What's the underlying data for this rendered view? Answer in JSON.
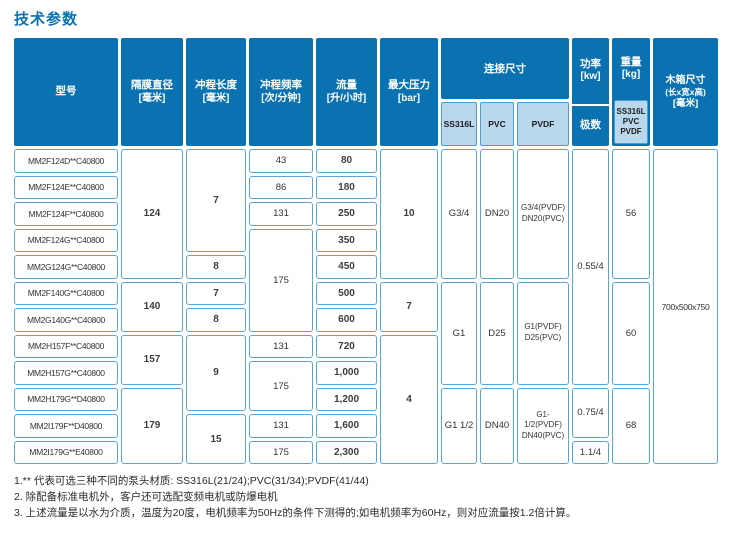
{
  "title": "技术参数",
  "colors": {
    "header_blue": "#0b72b2",
    "subheader_light_blue": "#b9d8ec",
    "cell_border_blue": "#5aa5d6",
    "title_blue": "#0b72b2"
  },
  "table": {
    "headers": {
      "model": "型号",
      "diaphragm": {
        "label": "隔膜直径",
        "unit": "[毫米]"
      },
      "stroke": {
        "label": "冲程长度",
        "unit": "[毫米]"
      },
      "frequency": {
        "label": "冲程频率",
        "unit": "[次/分钟]"
      },
      "flow": {
        "label": "流量",
        "unit": "[升/小时]"
      },
      "pressure": {
        "label": "最大压力",
        "unit": "[bar]"
      },
      "connection": {
        "label": "连接尺寸",
        "subs": [
          "SS316L",
          "PVC",
          "PVDF"
        ]
      },
      "power": {
        "label": "功率",
        "unit": "[kw]",
        "sub": "极数"
      },
      "weight": {
        "label": "重量",
        "unit": "[kg]",
        "subs": [
          "SS316L",
          "PVC",
          "PVDF"
        ]
      },
      "box": {
        "lines": [
          "木箱尺寸",
          "(长x宽x高)",
          "[毫米]"
        ]
      }
    },
    "column_order": [
      "model",
      "diaphragm",
      "stroke",
      "frequency",
      "flow",
      "pressure",
      "ss316l",
      "pvc",
      "pvdf",
      "power",
      "weight",
      "box"
    ],
    "models": [
      "MM2F124D**C40800",
      "MM2F124E**C40800",
      "MM2F124F**C40800",
      "MM2F124G**C40800",
      "MM2G124G**C40800",
      "MM2F140G**C40800",
      "MM2G140G**C40800",
      "MM2H157F**C40800",
      "MM2H157G**C40800",
      "MM2H179G**D40800",
      "MM2I179F**D40800",
      "MM2I179G**E40800"
    ],
    "cells": {
      "diaphragm": [
        {
          "value": "124",
          "row": 1,
          "span": 5
        },
        {
          "value": "140",
          "row": 6,
          "span": 2
        },
        {
          "value": "157",
          "row": 8,
          "span": 2
        },
        {
          "value": "179",
          "row": 10,
          "span": 3
        }
      ],
      "stroke": [
        {
          "value": "7",
          "row": 1,
          "span": 4
        },
        {
          "value": "8",
          "row": 5,
          "span": 1
        },
        {
          "value": "7",
          "row": 6,
          "span": 1
        },
        {
          "value": "8",
          "row": 7,
          "span": 1
        },
        {
          "value": "9",
          "row": 8,
          "span": 3
        },
        {
          "value": "15",
          "row": 11,
          "span": 2
        }
      ],
      "frequency": [
        {
          "value": "43",
          "row": 1,
          "span": 1
        },
        {
          "value": "86",
          "row": 2,
          "span": 1
        },
        {
          "value": "131",
          "row": 3,
          "span": 1
        },
        {
          "value": "175",
          "row": 4,
          "span": 4
        },
        {
          "value": "131",
          "row": 8,
          "span": 1
        },
        {
          "value": "175",
          "row": 9,
          "span": 2
        },
        {
          "value": "131",
          "row": 11,
          "span": 1
        },
        {
          "value": "175",
          "row": 12,
          "span": 1
        }
      ],
      "flow": [
        {
          "value": "80",
          "row": 1,
          "span": 1
        },
        {
          "value": "180",
          "row": 2,
          "span": 1
        },
        {
          "value": "250",
          "row": 3,
          "span": 1
        },
        {
          "value": "350",
          "row": 4,
          "span": 1
        },
        {
          "value": "450",
          "row": 5,
          "span": 1
        },
        {
          "value": "500",
          "row": 6,
          "span": 1
        },
        {
          "value": "600",
          "row": 7,
          "span": 1
        },
        {
          "value": "720",
          "row": 8,
          "span": 1
        },
        {
          "value": "1,000",
          "row": 9,
          "span": 1
        },
        {
          "value": "1,200",
          "row": 10,
          "span": 1
        },
        {
          "value": "1,600",
          "row": 11,
          "span": 1
        },
        {
          "value": "2,300",
          "row": 12,
          "span": 1
        }
      ],
      "pressure": [
        {
          "value": "10",
          "row": 1,
          "span": 5
        },
        {
          "value": "7",
          "row": 6,
          "span": 2
        },
        {
          "value": "4",
          "row": 8,
          "span": 5
        }
      ],
      "ss316l": [
        {
          "value": "G3/4",
          "row": 1,
          "span": 5
        },
        {
          "value": "G1",
          "row": 6,
          "span": 4
        },
        {
          "value": "G1 1/2",
          "row": 10,
          "span": 3
        }
      ],
      "pvc": [
        {
          "value": "DN20",
          "row": 1,
          "span": 5
        },
        {
          "value": "D25",
          "row": 6,
          "span": 4
        },
        {
          "value": "DN40",
          "row": 10,
          "span": 3
        }
      ],
      "pvdf": [
        {
          "value": "G3/4(PVDF)\nDN20(PVC)",
          "row": 1,
          "span": 5
        },
        {
          "value": "G1(PVDF)\nD25(PVC)",
          "row": 6,
          "span": 4
        },
        {
          "value": "G1-1/2(PVDF)\nDN40(PVC)",
          "row": 10,
          "span": 3
        }
      ],
      "power": [
        {
          "value": "0.55/4",
          "row": 1,
          "span": 9
        },
        {
          "value": "0.75/4",
          "row": 10,
          "span": 2
        },
        {
          "value": "1.1/4",
          "row": 12,
          "span": 1
        }
      ],
      "weight": [
        {
          "value": "56",
          "row": 1,
          "span": 5
        },
        {
          "value": "60",
          "row": 6,
          "span": 4
        },
        {
          "value": "68",
          "row": 10,
          "span": 3
        }
      ],
      "box": [
        {
          "value": "700x500x750",
          "row": 1,
          "span": 12
        }
      ]
    }
  },
  "footnotes": [
    "1.** 代表可选三种不同的泵头材质: SS316L(21/24);PVC(31/34);PVDF(41/44)",
    "2. 除配备标准电机外，客户还可选配变频电机或防爆电机",
    "3. 上述流量是以水为介质，温度为20度，电机频率为50Hz的条件下测得的;如电机频率为60Hz，则对应流量按1.2倍计算。"
  ]
}
